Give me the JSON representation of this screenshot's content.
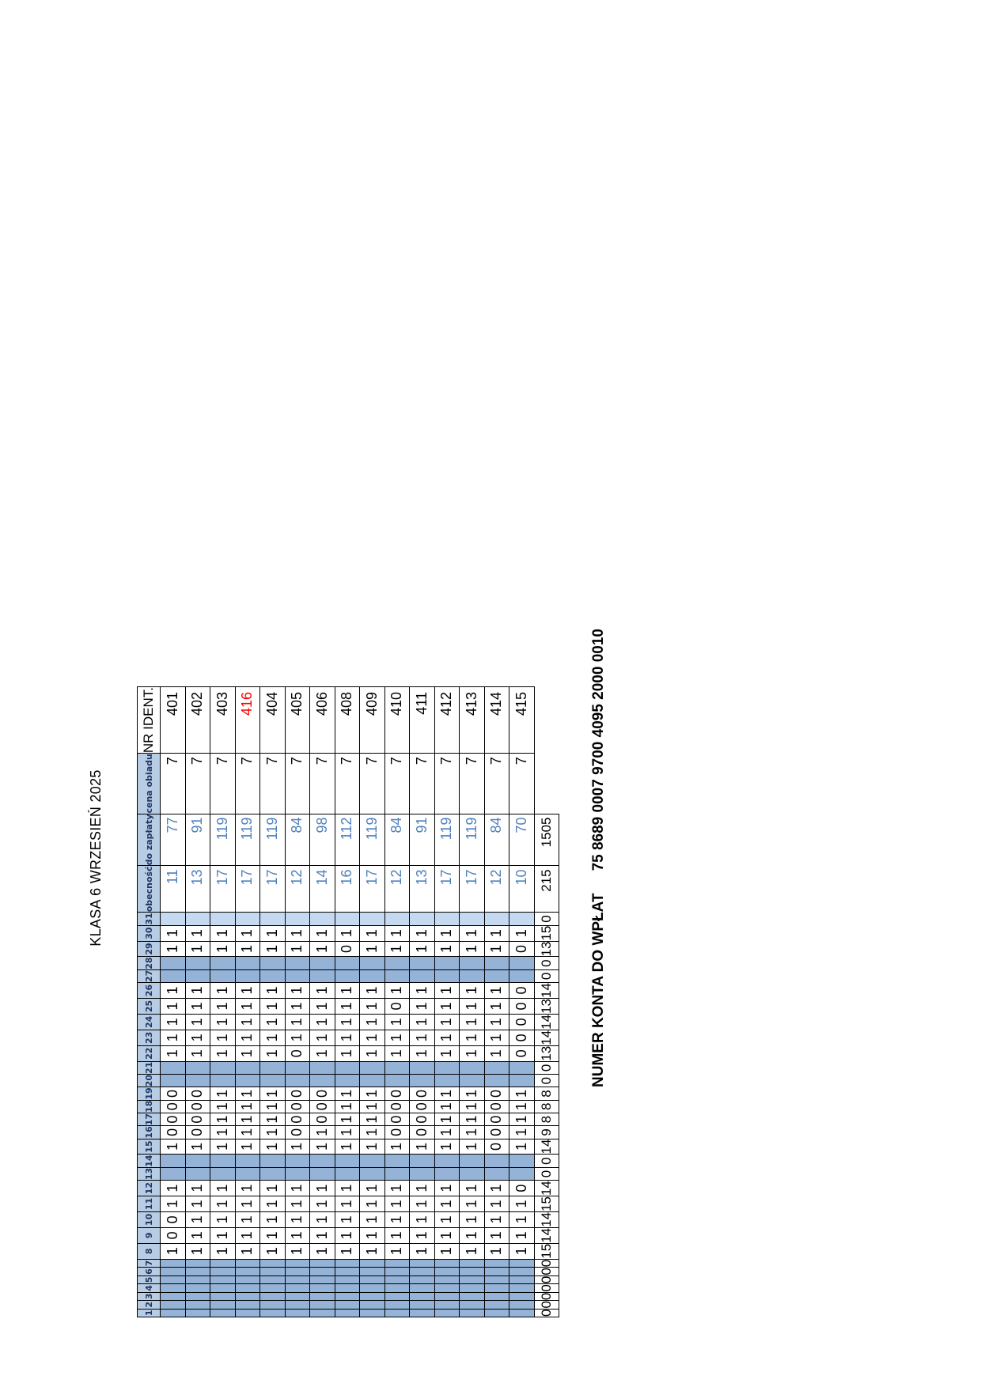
{
  "title": "KLASA 6 WRZESIEŃ 2025",
  "account": {
    "label": "NUMER KONTA  DO WPŁAT",
    "number": "75 8689 0007 9700 4095 2000 0010"
  },
  "table": {
    "headers": {
      "days": [
        "1",
        "2",
        "3",
        "4",
        "5",
        "6",
        "7",
        "8",
        "9",
        "10",
        "11",
        "12",
        "13",
        "14",
        "15",
        "16",
        "17",
        "18",
        "19",
        "20",
        "21",
        "22",
        "23",
        "24",
        "25",
        "26",
        "27",
        "28",
        "29",
        "30",
        "31"
      ],
      "obecnosc": "obecność",
      "do_zaplaty": "do zapłaty",
      "cena": "cena obiadu",
      "ident": "NR IDENT."
    },
    "weekend_days": [
      1,
      2,
      3,
      4,
      5,
      6,
      7,
      13,
      14,
      20,
      21,
      27,
      28
    ],
    "rows": [
      {
        "d": {
          "8": "1",
          "9": "0",
          "10": "0",
          "11": "1",
          "12": "1",
          "15": "1",
          "16": "0",
          "17": "0",
          "18": "0",
          "19": "0",
          "22": "1",
          "23": "1",
          "24": "1",
          "25": "1",
          "26": "1",
          "29": "1",
          "30": "1"
        },
        "obecnosc": "11",
        "zaplata": "77",
        "cena": "7",
        "ident": "401"
      },
      {
        "d": {
          "8": "1",
          "9": "1",
          "10": "1",
          "11": "1",
          "12": "1",
          "15": "1",
          "16": "0",
          "17": "0",
          "18": "0",
          "19": "0",
          "22": "1",
          "23": "1",
          "24": "1",
          "25": "1",
          "26": "1",
          "29": "1",
          "30": "1"
        },
        "obecnosc": "13",
        "zaplata": "91",
        "cena": "7",
        "ident": "402"
      },
      {
        "d": {
          "8": "1",
          "9": "1",
          "10": "1",
          "11": "1",
          "12": "1",
          "15": "1",
          "16": "1",
          "17": "1",
          "18": "1",
          "19": "1",
          "22": "1",
          "23": "1",
          "24": "1",
          "25": "1",
          "26": "1",
          "29": "1",
          "30": "1"
        },
        "obecnosc": "17",
        "zaplata": "119",
        "cena": "7",
        "ident": "403"
      },
      {
        "d": {
          "8": "1",
          "9": "1",
          "10": "1",
          "11": "1",
          "12": "1",
          "15": "1",
          "16": "1",
          "17": "1",
          "18": "1",
          "19": "1",
          "22": "1",
          "23": "1",
          "24": "1",
          "25": "1",
          "26": "1",
          "29": "1",
          "30": "1"
        },
        "obecnosc": "17",
        "zaplata": "119",
        "cena": "7",
        "ident": "416",
        "ident_red": true
      },
      {
        "d": {
          "8": "1",
          "9": "1",
          "10": "1",
          "11": "1",
          "12": "1",
          "15": "1",
          "16": "1",
          "17": "1",
          "18": "1",
          "19": "1",
          "22": "1",
          "23": "1",
          "24": "1",
          "25": "1",
          "26": "1",
          "29": "1",
          "30": "1"
        },
        "obecnosc": "17",
        "zaplata": "119",
        "cena": "7",
        "ident": "404"
      },
      {
        "d": {
          "8": "1",
          "9": "1",
          "10": "1",
          "11": "1",
          "12": "1",
          "15": "1",
          "16": "0",
          "17": "0",
          "18": "0",
          "19": "0",
          "22": "0",
          "23": "1",
          "24": "1",
          "25": "1",
          "26": "1",
          "29": "1",
          "30": "1"
        },
        "obecnosc": "12",
        "zaplata": "84",
        "cena": "7",
        "ident": "405"
      },
      {
        "d": {
          "8": "1",
          "9": "1",
          "10": "1",
          "11": "1",
          "12": "1",
          "15": "1",
          "16": "1",
          "17": "0",
          "18": "0",
          "19": "0",
          "22": "1",
          "23": "1",
          "24": "1",
          "25": "1",
          "26": "1",
          "29": "1",
          "30": "1"
        },
        "obecnosc": "14",
        "zaplata": "98",
        "cena": "7",
        "ident": "406"
      },
      {
        "d": {
          "8": "1",
          "9": "1",
          "10": "1",
          "11": "1",
          "12": "1",
          "15": "1",
          "16": "1",
          "17": "1",
          "18": "1",
          "19": "1",
          "22": "1",
          "23": "1",
          "24": "1",
          "25": "1",
          "26": "1",
          "29": "0",
          "30": "1"
        },
        "obecnosc": "16",
        "zaplata": "112",
        "cena": "7",
        "ident": "408"
      },
      {
        "d": {
          "8": "1",
          "9": "1",
          "10": "1",
          "11": "1",
          "12": "1",
          "15": "1",
          "16": "1",
          "17": "1",
          "18": "1",
          "19": "1",
          "22": "1",
          "23": "1",
          "24": "1",
          "25": "1",
          "26": "1",
          "29": "1",
          "30": "1"
        },
        "obecnosc": "17",
        "zaplata": "119",
        "cena": "7",
        "ident": "409"
      },
      {
        "d": {
          "8": "1",
          "9": "1",
          "10": "1",
          "11": "1",
          "12": "1",
          "15": "1",
          "16": "0",
          "17": "0",
          "18": "0",
          "19": "0",
          "22": "1",
          "23": "1",
          "24": "1",
          "25": "0",
          "26": "1",
          "29": "1",
          "30": "1"
        },
        "obecnosc": "12",
        "zaplata": "84",
        "cena": "7",
        "ident": "410"
      },
      {
        "d": {
          "8": "1",
          "9": "1",
          "10": "1",
          "11": "1",
          "12": "1",
          "15": "1",
          "16": "0",
          "17": "0",
          "18": "0",
          "19": "0",
          "22": "1",
          "23": "1",
          "24": "1",
          "25": "1",
          "26": "1",
          "29": "1",
          "30": "1"
        },
        "obecnosc": "13",
        "zaplata": "91",
        "cena": "7",
        "ident": "411"
      },
      {
        "d": {
          "8": "1",
          "9": "1",
          "10": "1",
          "11": "1",
          "12": "1",
          "15": "1",
          "16": "1",
          "17": "1",
          "18": "1",
          "19": "1",
          "22": "1",
          "23": "1",
          "24": "1",
          "25": "1",
          "26": "1",
          "29": "1",
          "30": "1"
        },
        "obecnosc": "17",
        "zaplata": "119",
        "cena": "7",
        "ident": "412"
      },
      {
        "d": {
          "8": "1",
          "9": "1",
          "10": "1",
          "11": "1",
          "12": "1",
          "15": "1",
          "16": "1",
          "17": "1",
          "18": "1",
          "19": "1",
          "22": "1",
          "23": "1",
          "24": "1",
          "25": "1",
          "26": "1",
          "29": "1",
          "30": "1"
        },
        "obecnosc": "17",
        "zaplata": "119",
        "cena": "7",
        "ident": "413"
      },
      {
        "d": {
          "8": "1",
          "9": "1",
          "10": "1",
          "11": "1",
          "12": "1",
          "15": "0",
          "16": "0",
          "17": "0",
          "18": "0",
          "19": "0",
          "22": "1",
          "23": "1",
          "24": "1",
          "25": "1",
          "26": "1",
          "29": "1",
          "30": "1"
        },
        "obecnosc": "12",
        "zaplata": "84",
        "cena": "7",
        "ident": "414"
      },
      {
        "d": {
          "8": "1",
          "9": "1",
          "10": "1",
          "11": "1",
          "12": "0",
          "15": "1",
          "16": "1",
          "17": "1",
          "18": "1",
          "19": "1",
          "22": "0",
          "23": "0",
          "24": "0",
          "25": "0",
          "26": "0",
          "29": "0",
          "30": "1"
        },
        "obecnosc": "10",
        "zaplata": "70",
        "cena": "7",
        "ident": "415"
      }
    ],
    "sums": {
      "days": [
        "0",
        "0",
        "0",
        "0",
        "0",
        "0",
        "0",
        "15",
        "14",
        "14",
        "15",
        "14",
        "0",
        "0",
        "14",
        "9",
        "8",
        "8",
        "8",
        "0",
        "0",
        "13",
        "14",
        "14",
        "13",
        "14",
        "0",
        "0",
        "13",
        "15",
        "0"
      ],
      "obecnosc": "215",
      "zaplata": "1505"
    }
  },
  "colors": {
    "header_fill": "#b8cce4",
    "weekend_fill": "#95b3d7",
    "light_fill": "#c5d9f1",
    "value_blue": "#4f81bd",
    "ident_red": "#ff0000"
  }
}
